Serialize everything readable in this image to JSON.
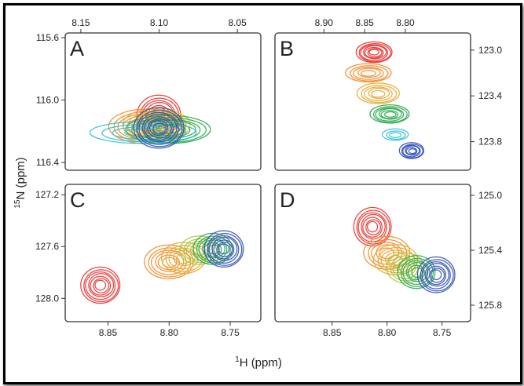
{
  "chart_data": [
    {
      "panel": "A",
      "type": "contour",
      "x_axis": {
        "label_position": "top",
        "range": [
          8.16,
          8.035
        ],
        "ticks": [
          "8.15",
          "8.10",
          "8.05"
        ],
        "tick_values": [
          8.15,
          8.1,
          8.05
        ]
      },
      "y_axis": {
        "label_position": "left",
        "range": [
          115.57,
          116.45
        ],
        "ticks": [
          "115.6",
          "116.0",
          "116.4"
        ],
        "tick_values": [
          115.6,
          116.0,
          116.4
        ]
      },
      "peaks": [
        {
          "color": "#e8322f",
          "x": 8.1,
          "y": 116.1,
          "rx": 0.014,
          "ry": 0.13,
          "levels": 7
        },
        {
          "color": "#f28a26",
          "x": 8.108,
          "y": 116.17,
          "rx": 0.024,
          "ry": 0.11,
          "levels": 7
        },
        {
          "color": "#e7a72c",
          "x": 8.103,
          "y": 116.16,
          "rx": 0.02,
          "ry": 0.1,
          "levels": 6
        },
        {
          "color": "#f0c21a",
          "x": 8.098,
          "y": 116.16,
          "rx": 0.018,
          "ry": 0.095,
          "levels": 5
        },
        {
          "color": "#27a84a",
          "x": 8.094,
          "y": 116.19,
          "rx": 0.027,
          "ry": 0.09,
          "levels": 7
        },
        {
          "color": "#2dc0d6",
          "x": 8.11,
          "y": 116.21,
          "rx": 0.034,
          "ry": 0.07,
          "levels": 4
        },
        {
          "color": "#2f4fb8",
          "x": 8.1,
          "y": 116.18,
          "rx": 0.016,
          "ry": 0.13,
          "levels": 8
        }
      ]
    },
    {
      "panel": "B",
      "type": "contour",
      "x_axis": {
        "label_position": "top",
        "range": [
          8.96,
          8.72
        ],
        "ticks": [
          "8.90",
          "8.85",
          "8.80"
        ],
        "tick_values": [
          8.9,
          8.85,
          8.8
        ]
      },
      "y_axis": {
        "label_position": "right",
        "range": [
          122.85,
          124.05
        ],
        "ticks": [
          "123.0",
          "123.4",
          "123.8"
        ],
        "tick_values": [
          123.0,
          123.4,
          123.8
        ]
      },
      "peaks": [
        {
          "color": "#e8322f",
          "x": 8.838,
          "y": 123.02,
          "rx": 0.022,
          "ry": 0.09,
          "levels": 7
        },
        {
          "color": "#f28a26",
          "x": 8.845,
          "y": 123.2,
          "rx": 0.028,
          "ry": 0.08,
          "levels": 5
        },
        {
          "color": "#e7a72c",
          "x": 8.833,
          "y": 123.38,
          "rx": 0.026,
          "ry": 0.09,
          "levels": 5
        },
        {
          "color": "#27a84a",
          "x": 8.819,
          "y": 123.56,
          "rx": 0.024,
          "ry": 0.08,
          "levels": 6
        },
        {
          "color": "#2dc0d6",
          "x": 8.812,
          "y": 123.74,
          "rx": 0.016,
          "ry": 0.05,
          "levels": 3
        },
        {
          "color": "#2f4fb8",
          "x": 8.792,
          "y": 123.88,
          "rx": 0.015,
          "ry": 0.07,
          "levels": 6
        }
      ]
    },
    {
      "panel": "C",
      "type": "contour",
      "x_axis": {
        "label_position": "bottom",
        "range": [
          8.885,
          8.725
        ],
        "ticks": [
          "8.85",
          "8.80",
          "8.75"
        ],
        "tick_values": [
          8.85,
          8.8,
          8.75
        ]
      },
      "y_axis": {
        "label_position": "left",
        "range": [
          127.12,
          128.18
        ],
        "ticks": [
          "127.2",
          "127.6",
          "128.0"
        ],
        "tick_values": [
          127.2,
          127.6,
          128.0
        ]
      },
      "peaks": [
        {
          "color": "#e8322f",
          "x": 8.856,
          "y": 127.9,
          "rx": 0.016,
          "ry": 0.14,
          "levels": 7
        },
        {
          "color": "#f28a26",
          "x": 8.8,
          "y": 127.72,
          "rx": 0.02,
          "ry": 0.13,
          "levels": 6
        },
        {
          "color": "#e7a72c",
          "x": 8.788,
          "y": 127.69,
          "rx": 0.018,
          "ry": 0.12,
          "levels": 5
        },
        {
          "color": "#a7c83a",
          "x": 8.775,
          "y": 127.63,
          "rx": 0.016,
          "ry": 0.11,
          "levels": 5
        },
        {
          "color": "#27a84a",
          "x": 8.764,
          "y": 127.62,
          "rx": 0.016,
          "ry": 0.12,
          "levels": 6
        },
        {
          "color": "#2f4fb8",
          "x": 8.755,
          "y": 127.62,
          "rx": 0.016,
          "ry": 0.14,
          "levels": 7
        }
      ]
    },
    {
      "panel": "D",
      "type": "contour",
      "x_axis": {
        "label_position": "bottom",
        "range": [
          8.902,
          8.724
        ],
        "ticks": [
          "8.85",
          "8.80",
          "8.75"
        ],
        "tick_values": [
          8.85,
          8.8,
          8.75
        ]
      },
      "y_axis": {
        "label_position": "right",
        "range": [
          124.92,
          125.92
        ],
        "ticks": [
          "125.0",
          "125.4",
          "125.8"
        ],
        "tick_values": [
          125.0,
          125.4,
          125.8
        ]
      },
      "peaks": [
        {
          "color": "#e8322f",
          "x": 8.813,
          "y": 125.23,
          "rx": 0.017,
          "ry": 0.14,
          "levels": 7
        },
        {
          "color": "#f28a26",
          "x": 8.8,
          "y": 125.42,
          "rx": 0.021,
          "ry": 0.12,
          "levels": 5
        },
        {
          "color": "#e7a72c",
          "x": 8.792,
          "y": 125.47,
          "rx": 0.02,
          "ry": 0.11,
          "levels": 5
        },
        {
          "color": "#a7c83a",
          "x": 8.783,
          "y": 125.53,
          "rx": 0.017,
          "ry": 0.11,
          "levels": 5
        },
        {
          "color": "#27a84a",
          "x": 8.773,
          "y": 125.56,
          "rx": 0.017,
          "ry": 0.12,
          "levels": 6
        },
        {
          "color": "#2f4fb8",
          "x": 8.755,
          "y": 125.58,
          "rx": 0.017,
          "ry": 0.13,
          "levels": 7
        }
      ]
    }
  ],
  "axis_labels": {
    "x": {
      "sup": "1",
      "text": "H (ppm)"
    },
    "y": {
      "sup": "15",
      "text": "N (ppm)"
    }
  }
}
